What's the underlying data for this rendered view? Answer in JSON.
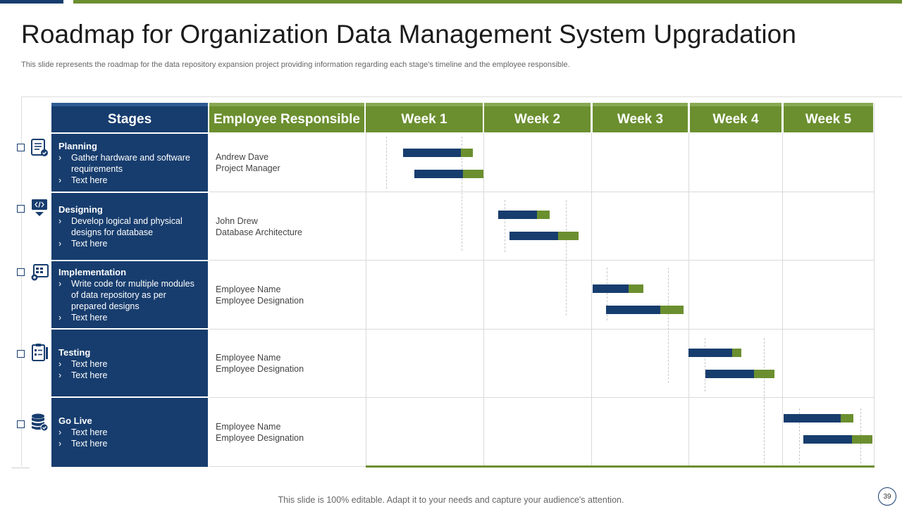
{
  "title": "Roadmap for Organization Data Management System Upgradation",
  "subtitle": "This slide represents the roadmap for the data repository expansion project providing information regarding each stage's timeline and the employee responsible.",
  "table": {
    "headers": {
      "stages": "Stages",
      "employee": "Employee Responsible",
      "weeks": [
        "Week 1",
        "Week 2",
        "Week 3",
        "Week 4",
        "Week 5"
      ]
    },
    "rows": [
      {
        "stage": "Planning",
        "icon": "planning-document-icon",
        "items": [
          "Gather hardware  and software requirements",
          "Text here"
        ],
        "employee_name": "Andrew Dave",
        "employee_role": "Project Manager"
      },
      {
        "stage": "Designing",
        "icon": "design-monitor-icon",
        "items": [
          "Develop logical and physical designs for database",
          "Text here"
        ],
        "employee_name": "John Drew",
        "employee_role": "Database Architecture"
      },
      {
        "stage": "Implementation",
        "icon": "implementation-gear-icon",
        "items": [
          "Write code for multiple modules of data repository as per prepared designs",
          "Text here"
        ],
        "employee_name": "Employee Name",
        "employee_role": "Employee Designation"
      },
      {
        "stage": "Testing",
        "icon": "testing-checklist-icon",
        "items": [
          "Text here",
          "Text here"
        ],
        "employee_name": "Employee Name",
        "employee_role": "Employee Designation"
      },
      {
        "stage": "Go Live",
        "icon": "database-check-icon",
        "items": [
          "Text here",
          "Text here"
        ],
        "employee_name": "Employee Name",
        "employee_role": "Employee Designation"
      }
    ]
  },
  "footer": "This slide is 100% editable. Adapt it to your needs and capture your audience's attention.",
  "page_number": "39",
  "colors": {
    "navy": "#173d6e",
    "green": "#6b8f2f"
  }
}
